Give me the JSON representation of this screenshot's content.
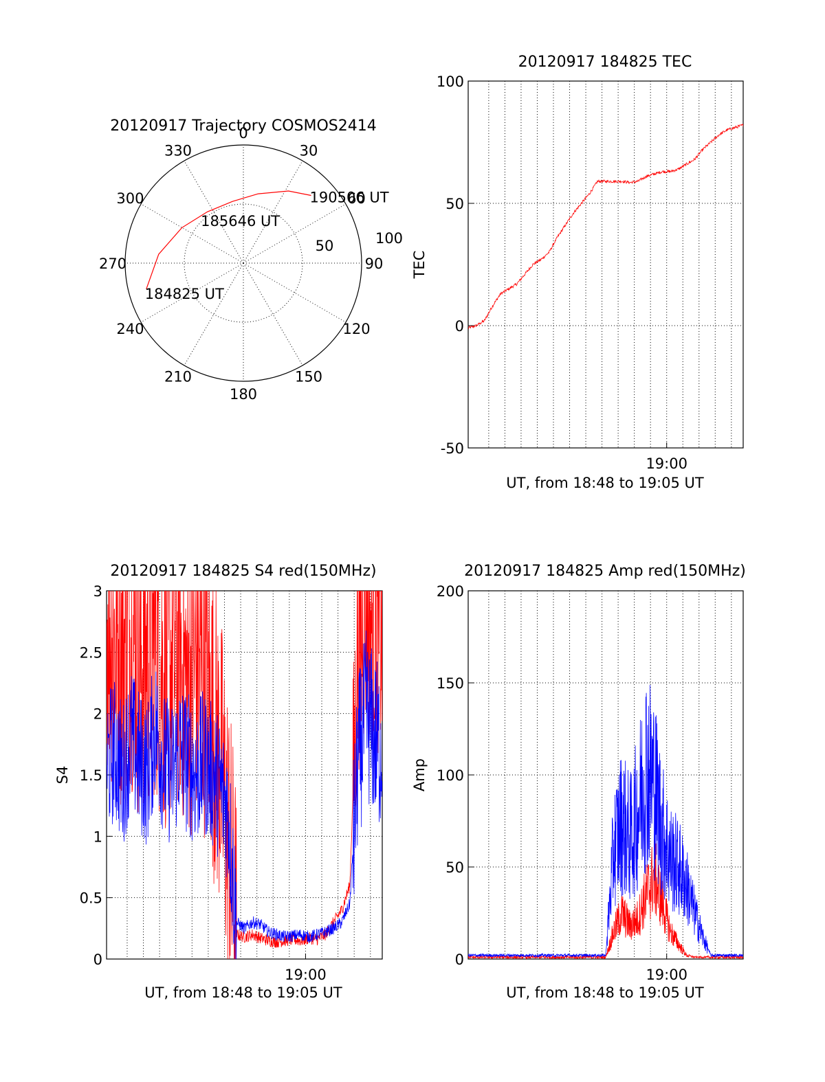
{
  "chart_data": [
    {
      "type": "polar",
      "title": "20120917 Trajectory COSMOS2414",
      "azimuth_tick_labels": [
        "0",
        "30",
        "60",
        "90",
        "120",
        "150",
        "180",
        "210",
        "240",
        "270",
        "300",
        "330"
      ],
      "ring_labels": [
        "50",
        "100"
      ],
      "rlim": [
        0,
        100
      ],
      "series": [
        {
          "color": "#ff0000",
          "points": [
            {
              "az": 255,
              "zenith": 85
            },
            {
              "az": 276,
              "zenith": 72
            },
            {
              "az": 300,
              "zenith": 60
            },
            {
              "az": 325,
              "zenith": 53
            },
            {
              "az": 350,
              "zenith": 53
            },
            {
              "az": 12,
              "zenith": 60
            },
            {
              "az": 32,
              "zenith": 72
            },
            {
              "az": 45,
              "zenith": 81
            }
          ]
        }
      ],
      "annotations": [
        "184825 UT",
        "185646 UT",
        "190506 UT"
      ]
    },
    {
      "type": "line",
      "title": "20120917 184825 TEC",
      "xlabel": "UT, from 18:48 to 19:05 UT",
      "ylabel": "TEC",
      "x_tick_labels": [
        "19:00"
      ],
      "y_tick_labels": [
        "-50",
        "0",
        "50",
        "100"
      ],
      "xlim": [
        0,
        17
      ],
      "ylim": [
        -50,
        100
      ],
      "series": [
        {
          "color": "#ff0000",
          "x": [
            0,
            0.5,
            1,
            1.5,
            2,
            2.5,
            3,
            3.5,
            4,
            4.5,
            5,
            5.5,
            6,
            6.5,
            7,
            7.5,
            8,
            8.5,
            9,
            9.5,
            10,
            10.5,
            11,
            11.5,
            12,
            12.5,
            13,
            13.5,
            14,
            14.5,
            15,
            15.5,
            16,
            16.5,
            17
          ],
          "y": [
            -1,
            0,
            2,
            8,
            13,
            15,
            17,
            21,
            25,
            27,
            30,
            36,
            41,
            46,
            50,
            54,
            59,
            59,
            59,
            59,
            58.5,
            59,
            61,
            62,
            63,
            63,
            64,
            66,
            68,
            72,
            75,
            78,
            80,
            81,
            82
          ]
        }
      ]
    },
    {
      "type": "line",
      "title": "20120917 184825 S4 red(150MHz)",
      "xlabel": "UT, from 18:48 to 19:05 UT",
      "ylabel": "S4",
      "x_tick_labels": [
        "19:00"
      ],
      "y_tick_labels": [
        "0",
        "0.5",
        "1",
        "1.5",
        "2",
        "2.5",
        "3"
      ],
      "xlim": [
        0,
        17
      ],
      "ylim": [
        0,
        3
      ],
      "series": [
        {
          "color": "#ff0000",
          "x": [
            0,
            0.5,
            1,
            1.5,
            2,
            2.5,
            3,
            3.5,
            4,
            4.5,
            5,
            5.5,
            6,
            6.5,
            7,
            7.5,
            8,
            8.5,
            9,
            9.5,
            10,
            10.5,
            11,
            11.5,
            12,
            12.5,
            13,
            13.5,
            14,
            14.5,
            15,
            15.5,
            16,
            16.5,
            17
          ],
          "y": [
            2.8,
            2.6,
            2.5,
            2.7,
            2.4,
            2.5,
            2.6,
            2.3,
            2.4,
            2.5,
            2.2,
            2.4,
            2.3,
            2.0,
            1.6,
            1.0,
            0.2,
            0.18,
            0.2,
            0.17,
            0.15,
            0.14,
            0.15,
            0.16,
            0.15,
            0.17,
            0.16,
            0.2,
            0.3,
            0.4,
            0.6,
            2.5,
            2.8,
            2.7,
            2.6
          ]
        },
        {
          "color": "#0000ff",
          "x": [
            0,
            0.5,
            1,
            1.5,
            2,
            2.5,
            3,
            3.5,
            4,
            4.5,
            5,
            5.5,
            6,
            6.5,
            7,
            7.5,
            8,
            8.5,
            9,
            9.5,
            10,
            10.5,
            11,
            11.5,
            12,
            12.5,
            13,
            13.5,
            14,
            14.5,
            15,
            15.5,
            16,
            16.5,
            17
          ],
          "y": [
            1.6,
            1.7,
            1.5,
            1.8,
            1.6,
            1.5,
            1.9,
            1.6,
            1.5,
            1.7,
            1.6,
            1.5,
            1.6,
            1.5,
            1.4,
            1.2,
            0.3,
            0.25,
            0.3,
            0.28,
            0.22,
            0.2,
            0.18,
            0.19,
            0.2,
            0.18,
            0.2,
            0.22,
            0.25,
            0.3,
            0.45,
            1.6,
            2.0,
            1.8,
            1.7
          ]
        }
      ]
    },
    {
      "type": "line",
      "title": "20120917 184825 Amp red(150MHz)",
      "xlabel": "UT, from 18:48 to 19:05 UT",
      "ylabel": "Amp",
      "x_tick_labels": [
        "19:00"
      ],
      "y_tick_labels": [
        "0",
        "50",
        "100",
        "150",
        "200"
      ],
      "xlim": [
        0,
        17
      ],
      "ylim": [
        0,
        200
      ],
      "series": [
        {
          "color": "#ff0000",
          "x": [
            0,
            1,
            2,
            3,
            4,
            5,
            6,
            7,
            8,
            8.5,
            9,
            9.5,
            10,
            10.5,
            11,
            11.5,
            12,
            12.5,
            13,
            13.5,
            14,
            15,
            16,
            17
          ],
          "y": [
            1,
            1,
            1,
            1,
            1,
            1,
            1,
            1,
            1,
            1,
            15,
            25,
            18,
            22,
            35,
            45,
            30,
            15,
            8,
            2,
            1,
            1,
            1,
            1
          ]
        },
        {
          "color": "#0000ff",
          "x": [
            0,
            1,
            2,
            3,
            4,
            5,
            6,
            7,
            8,
            8.5,
            9,
            9.5,
            10,
            10.5,
            11,
            11.5,
            12,
            12.5,
            13,
            13.5,
            14,
            14.5,
            15,
            16,
            17
          ],
          "y": [
            2,
            2,
            2,
            2,
            2,
            2,
            2,
            2,
            2,
            2,
            60,
            75,
            65,
            80,
            105,
            95,
            70,
            55,
            50,
            40,
            25,
            12,
            2,
            2,
            2
          ]
        }
      ]
    }
  ]
}
